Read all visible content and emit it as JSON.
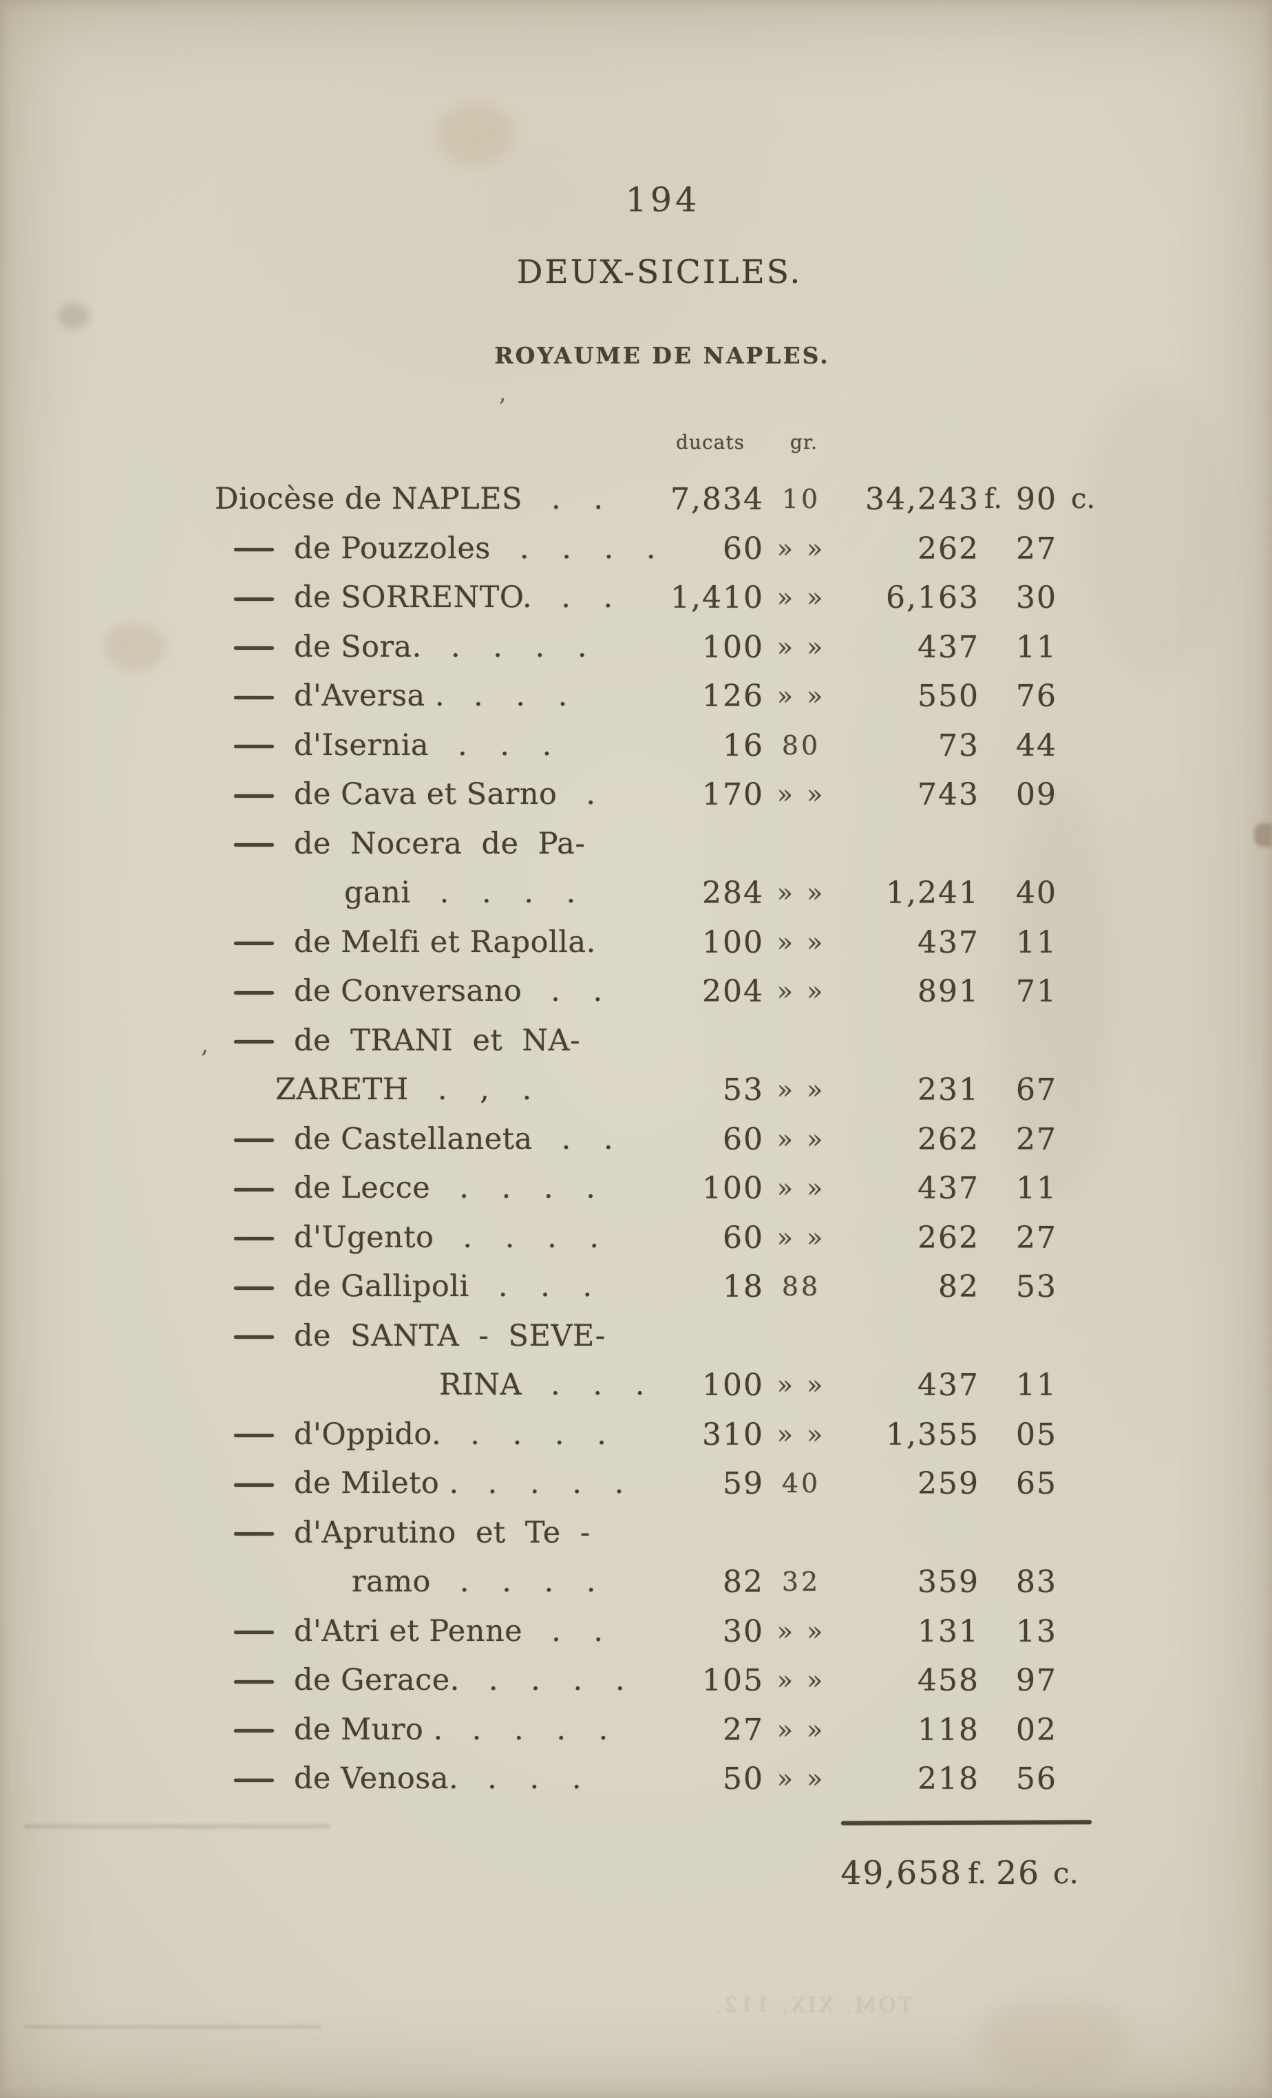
{
  "page": {
    "number": "194",
    "title": "DEUX-SICILES.",
    "subtitle": "ROYAUME DE NAPLES.",
    "stray_mark": "’"
  },
  "table": {
    "col_headers": {
      "ducats": "ducats",
      "gr": "gr."
    },
    "lines": [
      {
        "kind": "first",
        "label": "Diocèse de NAPLES",
        "dots": ". .",
        "ducats": "7,834",
        "gr": "10",
        "francs": "34,243",
        "francs_suffix": "f.",
        "cents": "90",
        "cents_suffix": "c."
      },
      {
        "kind": "entry",
        "label": "de Pouzzoles",
        "dots": ". . . .",
        "ducats": "60",
        "gr": "» »",
        "francs": "262",
        "cents": "27"
      },
      {
        "kind": "entry",
        "label": "de SORRENTO.",
        "dots": ". .",
        "ducats": "1,410",
        "gr": "» »",
        "francs": "6,163",
        "cents": "30"
      },
      {
        "kind": "entry",
        "label": "de Sora.",
        "dots": ". . . .",
        "ducats": "100",
        "gr": "» »",
        "francs": "437",
        "cents": "11"
      },
      {
        "kind": "entry",
        "label": "d'Aversa .",
        "dots": ". . .",
        "ducats": "126",
        "gr": "» »",
        "francs": "550",
        "cents": "76"
      },
      {
        "kind": "entry",
        "label": "d'Isernia",
        "dots": ". . .",
        "ducats": "16",
        "gr": "80",
        "francs": "73",
        "cents": "44"
      },
      {
        "kind": "entry",
        "label": "de Cava et Sarno",
        "dots": ".",
        "ducats": "170",
        "gr": "» »",
        "francs": "743",
        "cents": "09"
      },
      {
        "kind": "wrapstart",
        "label": "de Nocera de Pa-"
      },
      {
        "kind": "wrapend",
        "label": "gani",
        "dots": ". . . .",
        "ducats": "284",
        "gr": "» »",
        "francs": "1,241",
        "cents": "40"
      },
      {
        "kind": "entry",
        "label": "de Melfi et Rapolla.",
        "dots": "",
        "ducats": "100",
        "gr": "» »",
        "francs": "437",
        "cents": "11"
      },
      {
        "kind": "entry",
        "label": "de Conversano",
        "dots": ". .",
        "ducats": "204",
        "gr": "» »",
        "francs": "891",
        "cents": "71"
      },
      {
        "kind": "wrapstart",
        "label": "de TRANI et NA-",
        "margin_mark": ","
      },
      {
        "kind": "wrapend",
        "label": "ZARETH",
        "dots": ". , .",
        "ducats": "53",
        "gr": "» »",
        "francs": "231",
        "cents": "67"
      },
      {
        "kind": "entry",
        "label": "de Castellaneta",
        "dots": ". .",
        "ducats": "60",
        "gr": "» »",
        "francs": "262",
        "cents": "27"
      },
      {
        "kind": "entry",
        "label": "de Lecce",
        "dots": ". . . .",
        "ducats": "100",
        "gr": "» »",
        "francs": "437",
        "cents": "11"
      },
      {
        "kind": "entry",
        "label": "d'Ugento",
        "dots": ". . . .",
        "ducats": "60",
        "gr": "» »",
        "francs": "262",
        "cents": "27"
      },
      {
        "kind": "entry",
        "label": "de Gallipoli",
        "dots": ". . .",
        "ducats": "18",
        "gr": "88",
        "francs": "82",
        "cents": "53"
      },
      {
        "kind": "wrapstart",
        "label": "de SANTA - SEVE-"
      },
      {
        "kind": "wrapend",
        "label": "RINA",
        "dots": ". . .",
        "ducats": "100",
        "gr": "» »",
        "francs": "437",
        "cents": "11"
      },
      {
        "kind": "entry",
        "label": "d'Oppido.",
        "dots": ". . . .",
        "ducats": "310",
        "gr": "» »",
        "francs": "1,355",
        "cents": "05"
      },
      {
        "kind": "entry",
        "label": "de Mileto .",
        "dots": ". . . .",
        "ducats": "59",
        "gr": "40",
        "francs": "259",
        "cents": "65"
      },
      {
        "kind": "wrapstart",
        "label": "d'Aprutino et Te -"
      },
      {
        "kind": "wrapend",
        "label": "ramo",
        "dots": ". . . .",
        "ducats": "82",
        "gr": "32",
        "francs": "359",
        "cents": "83"
      },
      {
        "kind": "entry",
        "label": "d'Atri et Penne",
        "dots": ". .",
        "ducats": "30",
        "gr": "» »",
        "francs": "131",
        "cents": "13"
      },
      {
        "kind": "entry",
        "label": "de Gerace.",
        "dots": ". . . .",
        "ducats": "105",
        "gr": "» »",
        "francs": "458",
        "cents": "97"
      },
      {
        "kind": "entry",
        "label": "de Muro .",
        "dots": ". . . .",
        "ducats": "27",
        "gr": "» »",
        "francs": "118",
        "cents": "02"
      },
      {
        "kind": "entry",
        "label": "de Venosa.",
        "dots": ". . .",
        "ducats": "50",
        "gr": "» »",
        "francs": "218",
        "cents": "56"
      }
    ],
    "total": {
      "amount": "49,658",
      "francs_suffix": "f.",
      "cents": "26",
      "cents_suffix": "c."
    }
  },
  "bleed": {
    "footer_mirrored": "TOM. XIX. 112."
  }
}
